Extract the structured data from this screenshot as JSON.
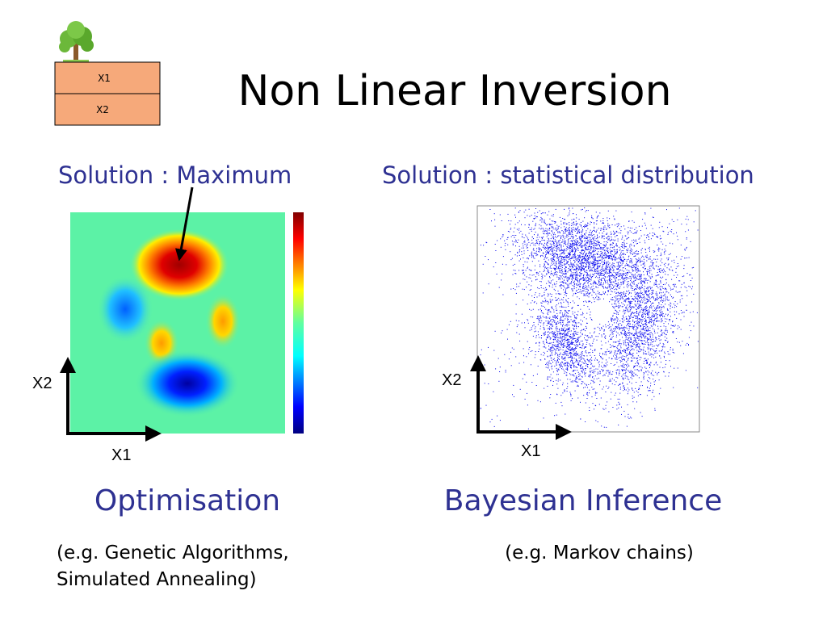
{
  "slide": {
    "title": "Non Linear Inversion",
    "layers": [
      "X1",
      "X2"
    ],
    "left": {
      "heading": "Solution : Maximum",
      "y_axis": "X2",
      "x_axis": "X1",
      "method": "Optimisation",
      "example": [
        "(e.g. Genetic Algorithms,",
        "Simulated Annealing)"
      ]
    },
    "right": {
      "heading": "Solution : statistical distribution",
      "y_axis": "X2",
      "x_axis": "X1",
      "method": "Bayesian Inference",
      "example": [
        "(e.g. Markov chains)"
      ]
    }
  }
}
